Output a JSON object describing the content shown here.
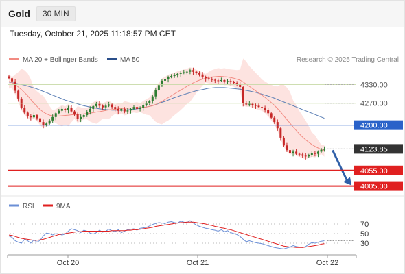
{
  "header": {
    "title": "Gold",
    "interval": "30 MIN",
    "datetime": "Tuesday, October 21, 2025 11:18:57 PM CET"
  },
  "legend": {
    "ma20_bb": "MA 20 + Bollinger Bands",
    "ma50": "MA 50",
    "credit": "Research © 2025 Trading Central"
  },
  "rsi_legend": {
    "rsi": "RSI",
    "ma9": "9MA"
  },
  "colors": {
    "bull_candle": "#2e7d32",
    "bear_candle": "#c62828",
    "bollinger_fill": "#fde3e0",
    "ma20": "#f28b82",
    "ma50": "#5b7fb5",
    "pivot": "#2a62c9",
    "resistance": "#c7d9a6",
    "support": "#e02020",
    "current_price": "#333333",
    "rsi": "#6b8fd6",
    "rsi_ma": "#e02020"
  },
  "chart_data": [
    {
      "type": "candlestick",
      "title": "Gold",
      "x_labels": [
        "Oct 20",
        "Oct 21",
        "Oct 22"
      ],
      "ylim": [
        3980,
        4390
      ],
      "levels": [
        {
          "value": 4330,
          "label": "4330.00",
          "kind": "resistance"
        },
        {
          "value": 4270,
          "label": "4270.00",
          "kind": "resistance"
        },
        {
          "value": 4200,
          "label": "4200.00",
          "kind": "pivot"
        },
        {
          "value": 4123.85,
          "label": "4123.85",
          "kind": "current"
        },
        {
          "value": 4055,
          "label": "4055.00",
          "kind": "support"
        },
        {
          "value": 4005,
          "label": "4005.00",
          "kind": "support"
        }
      ],
      "forecast": {
        "from": 4123.85,
        "to": 4005
      },
      "closes": [
        4350,
        4340,
        4310,
        4285,
        4255,
        4240,
        4230,
        4225,
        4232,
        4222,
        4210,
        4200,
        4205,
        4215,
        4226,
        4238,
        4246,
        4252,
        4248,
        4256,
        4244,
        4234,
        4220,
        4226,
        4232,
        4242,
        4252,
        4261,
        4268,
        4262,
        4257,
        4262,
        4266,
        4258,
        4252,
        4246,
        4252,
        4244,
        4247,
        4252,
        4258,
        4252,
        4256,
        4264,
        4270,
        4276,
        4292,
        4312,
        4328,
        4342,
        4347,
        4354,
        4357,
        4360,
        4364,
        4367,
        4369,
        4371,
        4376,
        4371,
        4366,
        4362,
        4354,
        4350,
        4347,
        4345,
        4343,
        4342,
        4344,
        4340,
        4341,
        4338,
        4335,
        4330,
        4322,
        4270,
        4266,
        4268,
        4264,
        4262,
        4258,
        4256,
        4248,
        4238,
        4224,
        4210,
        4190,
        4160,
        4135,
        4120,
        4110,
        4115,
        4108,
        4106,
        4102,
        4100,
        4104,
        4110,
        4108,
        4115,
        4121,
        4123.85
      ],
      "ma20": [
        4340,
        4336,
        4330,
        4322,
        4314,
        4304,
        4294,
        4282,
        4270,
        4260,
        4250,
        4242,
        4236,
        4232,
        4230,
        4229,
        4229,
        4230,
        4231,
        4232,
        4233,
        4234,
        4234,
        4235,
        4236,
        4237,
        4238,
        4240,
        4242,
        4243,
        4245,
        4247,
        4249,
        4250,
        4251,
        4252,
        4253,
        4254,
        4254,
        4255,
        4256,
        4256,
        4256,
        4257,
        4258,
        4260,
        4262,
        4266,
        4271,
        4276,
        4282,
        4288,
        4294,
        4300,
        4306,
        4312,
        4318,
        4324,
        4330,
        4335,
        4340,
        4344,
        4347,
        4350,
        4352,
        4354,
        4355,
        4356,
        4356,
        4355,
        4354,
        4352,
        4350,
        4347,
        4344,
        4338,
        4331,
        4324,
        4317,
        4310,
        4303,
        4296,
        4289,
        4281,
        4272,
        4263,
        4253,
        4242,
        4230,
        4218,
        4206,
        4194,
        4183,
        4172,
        4162,
        4153,
        4145,
        4138,
        4132,
        4127,
        4122,
        4118
      ],
      "ma50": [
        4338,
        4336,
        4334,
        4332,
        4330,
        4328,
        4325,
        4322,
        4319,
        4316,
        4312,
        4308,
        4304,
        4300,
        4296,
        4292,
        4288,
        4284,
        4280,
        4277,
        4274,
        4271,
        4268,
        4265,
        4262,
        4260,
        4258,
        4256,
        4254,
        4252,
        4251,
        4250,
        4249,
        4248,
        4248,
        4248,
        4248,
        4248,
        4249,
        4250,
        4251,
        4252,
        4254,
        4256,
        4258,
        4260,
        4263,
        4266,
        4269,
        4273,
        4276,
        4280,
        4284,
        4288,
        4291,
        4295,
        4298,
        4301,
        4304,
        4307,
        4310,
        4312,
        4314,
        4316,
        4318,
        4319,
        4320,
        4320,
        4320,
        4320,
        4319,
        4318,
        4317,
        4316,
        4315,
        4313,
        4311,
        4309,
        4307,
        4305,
        4302,
        4299,
        4296,
        4293,
        4290,
        4286,
        4282,
        4278,
        4274,
        4270,
        4266,
        4262,
        4258,
        4254,
        4250,
        4246,
        4242,
        4238,
        4234,
        4230,
        4226,
        4222
      ]
    },
    {
      "type": "line",
      "title": "RSI",
      "yticks": [
        70,
        50,
        30
      ],
      "ylim": [
        10,
        90
      ],
      "series": [
        {
          "name": "RSI",
          "values": [
            45,
            42,
            35,
            32,
            30,
            38,
            35,
            30,
            37,
            32,
            36,
            45,
            51,
            50,
            47,
            50,
            49,
            47,
            49,
            55,
            60,
            58,
            56,
            52,
            57,
            55,
            51,
            49,
            52,
            57,
            53,
            55,
            59,
            56,
            54,
            58,
            52,
            55,
            58,
            59,
            60,
            57,
            61,
            62,
            63,
            66,
            69,
            71,
            73,
            72,
            71,
            74,
            75,
            73,
            72,
            76,
            74,
            73,
            77,
            72,
            68,
            65,
            63,
            61,
            60,
            58,
            57,
            55,
            58,
            54,
            56,
            52,
            50,
            48,
            44,
            38,
            33,
            35,
            33,
            31,
            30,
            29,
            27,
            25,
            23,
            21,
            20,
            19,
            18,
            20,
            22,
            25,
            23,
            22,
            21,
            23,
            28,
            31,
            30,
            32,
            34,
            35
          ]
        },
        {
          "name": "9MA",
          "values": [
            47,
            46,
            44,
            42,
            40,
            39,
            38,
            37,
            36,
            36,
            37,
            38,
            40,
            42,
            44,
            46,
            48,
            49,
            50,
            51,
            52,
            53,
            54,
            54,
            55,
            55,
            55,
            55,
            55,
            55,
            55,
            55,
            55,
            56,
            56,
            56,
            56,
            56,
            57,
            57,
            58,
            58,
            59,
            60,
            61,
            62,
            63,
            65,
            66,
            67,
            68,
            69,
            70,
            71,
            72,
            73,
            73,
            74,
            74,
            74,
            73,
            72,
            71,
            70,
            68,
            67,
            65,
            64,
            62,
            61,
            59,
            58,
            56,
            54,
            52,
            50,
            48,
            46,
            44,
            42,
            40,
            38,
            36,
            34,
            32,
            30,
            28,
            26,
            24,
            23,
            22,
            22,
            21,
            21,
            21,
            22,
            23,
            24,
            25,
            26,
            28,
            29
          ]
        }
      ]
    }
  ]
}
